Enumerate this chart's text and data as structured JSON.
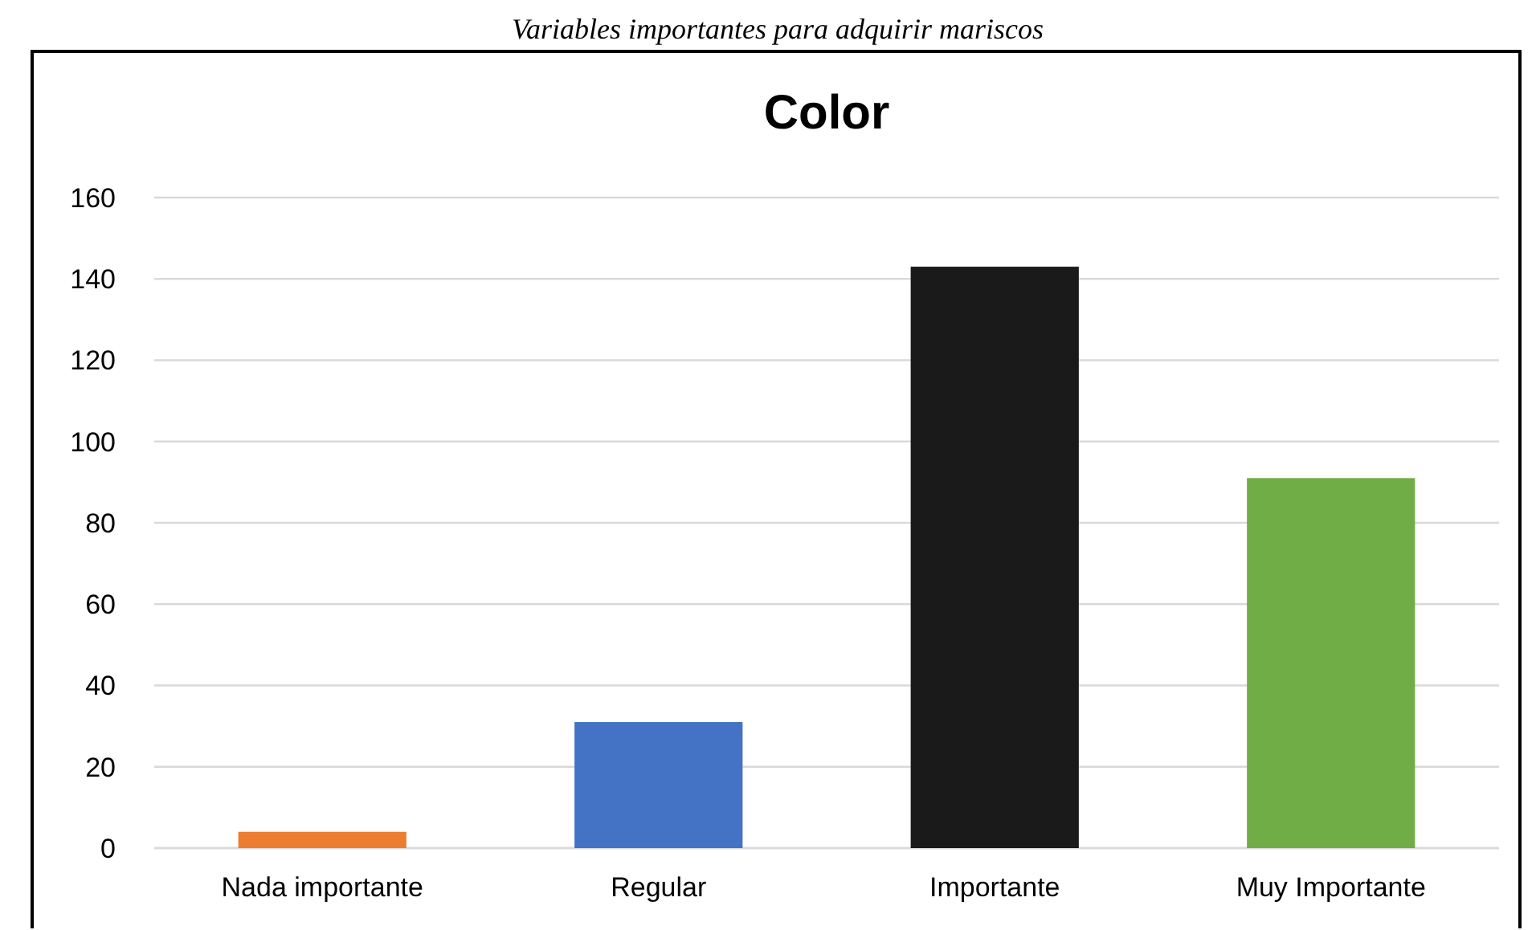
{
  "chart_data": {
    "type": "bar",
    "title": "Color",
    "subtitle": "Variables importantes para adquirir mariscos",
    "categories": [
      "Nada importante",
      "Regular",
      "Importante",
      "Muy Importante"
    ],
    "values": [
      4,
      31,
      143,
      91
    ],
    "colors": [
      "#ed7d31",
      "#4472c4",
      "#1a1a1a",
      "#70ad47"
    ],
    "ylim": [
      0,
      160
    ],
    "yticks": [
      0,
      20,
      40,
      60,
      80,
      100,
      120,
      140,
      160
    ],
    "grid": "y"
  }
}
